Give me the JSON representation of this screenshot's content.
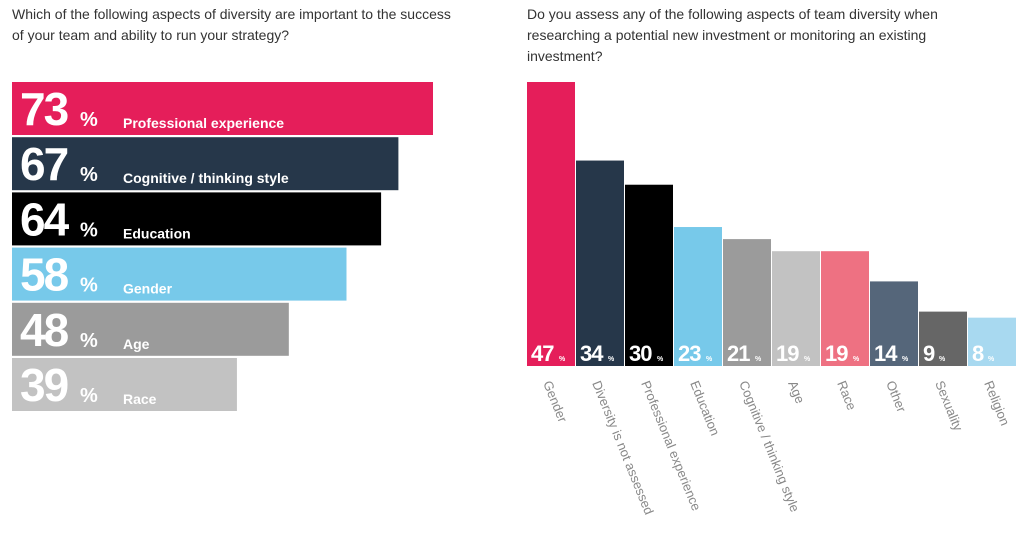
{
  "chart_data": [
    {
      "type": "bar",
      "orientation": "horizontal",
      "title": "Which of the following aspects of diversity are important to the success of your team and ability to run your strategy?",
      "unit": "%",
      "categories": [
        "Professional experience",
        "Cognitive / thinking style",
        "Education",
        "Gender",
        "Age",
        "Race"
      ],
      "values": [
        73,
        67,
        64,
        58,
        48,
        39
      ],
      "colors": [
        "#e51e5a",
        "#26374a",
        "#000000",
        "#77c9ea",
        "#9b9b9b",
        "#c2c2c2"
      ]
    },
    {
      "type": "bar",
      "orientation": "vertical",
      "title": "Do you assess any of the following aspects of team diversity when researching a potential new investment or monitoring an existing investment?",
      "unit": "%",
      "categories": [
        "Gender",
        "Diversity is not assessed",
        "Professional experience",
        "Education",
        "Cognitive / thinking style",
        "Age",
        "Race",
        "Other",
        "Sexuality",
        "Religion"
      ],
      "values": [
        47,
        34,
        30,
        23,
        21,
        19,
        19,
        14,
        9,
        8
      ],
      "colors": [
        "#e51e5a",
        "#26374a",
        "#000000",
        "#77c9ea",
        "#9b9b9b",
        "#c2c2c2",
        "#ee7182",
        "#55667a",
        "#666666",
        "#a8d9f0"
      ]
    }
  ]
}
